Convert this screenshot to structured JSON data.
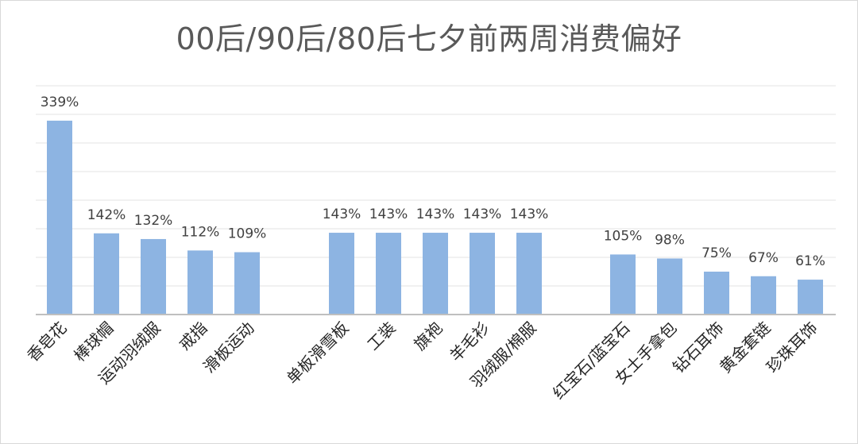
{
  "chart_data": {
    "type": "bar",
    "title": "00后/90后/80后七夕前两周消费偏好",
    "xlabel": "",
    "ylabel": "",
    "ylim": [
      0,
      400
    ],
    "grid": true,
    "bar_color": "#8db4e2",
    "groups": [
      {
        "categories": [
          "香皂花",
          "棒球帽",
          "运动羽绒服",
          "戒指",
          "滑板运动"
        ],
        "values": [
          339,
          142,
          132,
          112,
          109
        ],
        "labels": [
          "339%",
          "142%",
          "132%",
          "112%",
          "109%"
        ]
      },
      {
        "categories": [
          "单板滑雪板",
          "工装",
          "旗袍",
          "羊毛衫",
          "羽绒服/棉服"
        ],
        "values": [
          143,
          143,
          143,
          143,
          143
        ],
        "labels": [
          "143%",
          "143%",
          "143%",
          "143%",
          "143%"
        ]
      },
      {
        "categories": [
          "红宝石/蓝宝石",
          "女士手拿包",
          "钻石耳饰",
          "黄金套链",
          "珍珠耳饰"
        ],
        "values": [
          105,
          98,
          75,
          67,
          61
        ],
        "labels": [
          "105%",
          "98%",
          "75%",
          "67%",
          "61%"
        ]
      }
    ]
  }
}
